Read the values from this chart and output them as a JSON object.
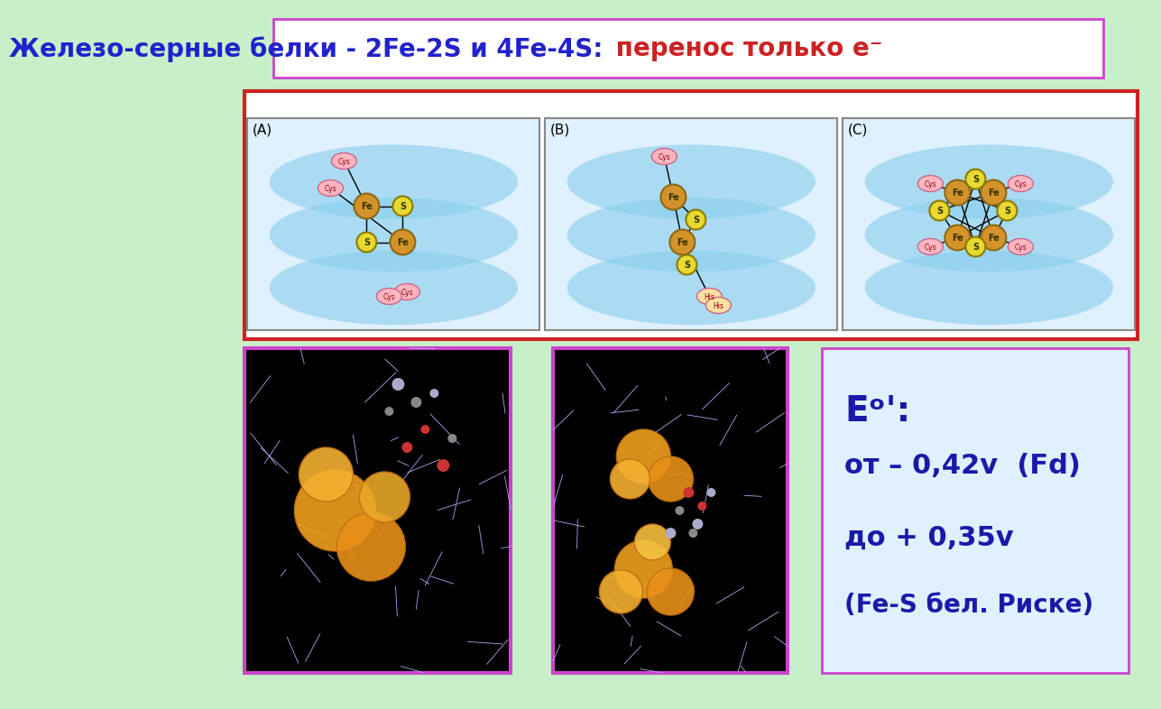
{
  "bg_color": "#c8f0c8",
  "title_text_blue": "Железо-серные белки - 2Fe-2S и 4Fe-4S:",
  "title_text_red": " перенос только е⁻",
  "title_box_bg": "#ffffff",
  "title_box_border": "#cc44cc",
  "title_fontsize": 20,
  "title_bold": true,
  "panel_border_color": "#cc2222",
  "panel_bg": "#ffffff",
  "panel_label_A": "(A)",
  "panel_label_B": "(B)",
  "panel_label_C": "(C)",
  "info_box_bg": "#e0f0ff",
  "info_box_border": "#cc44cc",
  "info_line1": "Eᵒ':",
  "info_line2": "от – 0,42v  (Fd)",
  "info_line3": "до + 0,35v",
  "info_line4": "(Fe-S бел. Риске)",
  "info_text_color": "#1a1aaa",
  "info_fontsize": 18,
  "bottom_img_border": "#cc44cc",
  "sub_img_bg_A": "#add8e6",
  "sub_img_bg_B": "#add8e6",
  "sub_img_bg_C": "#add8e6"
}
